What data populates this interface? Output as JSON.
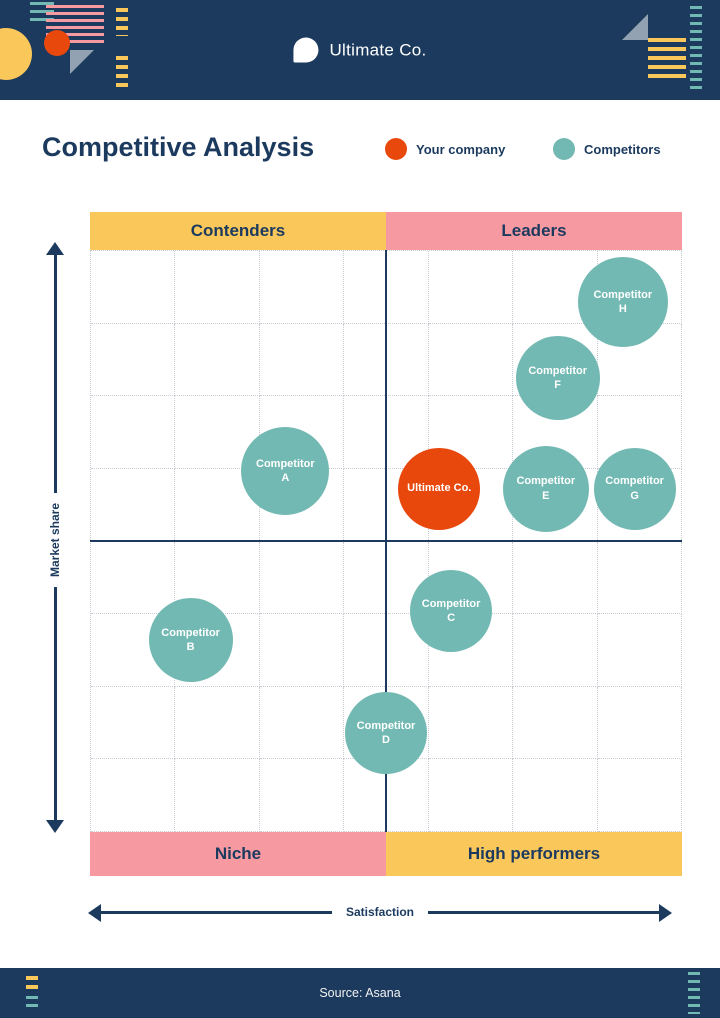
{
  "header": {
    "brand": "Ultimate Co."
  },
  "title": "Competitive Analysis",
  "legend": [
    {
      "label": "Your company",
      "color": "#E8480C"
    },
    {
      "label": "Competitors",
      "color": "#73B9B3"
    }
  ],
  "quadrants": {
    "top_left": "Contenders",
    "top_right": "Leaders",
    "bottom_left": "Niche",
    "bottom_right": "High performers"
  },
  "axes": {
    "x": "Satisfaction",
    "y": "Market share"
  },
  "footer": {
    "source": "Source: Asana"
  },
  "colors": {
    "navy": "#1B3A5E",
    "yellow": "#FAC75B",
    "pink": "#F799A1",
    "teal": "#73B9B3",
    "orange": "#E8480C"
  },
  "chart_data": {
    "type": "scatter",
    "title": "Competitive Analysis",
    "xlabel": "Satisfaction",
    "ylabel": "Market share",
    "xlim": [
      0,
      100
    ],
    "ylim": [
      0,
      100
    ],
    "grid": "dotted",
    "quadrant_labels": [
      "Contenders",
      "Leaders",
      "Niche",
      "High performers"
    ],
    "points": [
      {
        "label": "Competitor H",
        "x": 90,
        "y": 91,
        "r": 45,
        "series": "competitor"
      },
      {
        "label": "Competitor F",
        "x": 79,
        "y": 78,
        "r": 42,
        "series": "competitor"
      },
      {
        "label": "Competitor A",
        "x": 33,
        "y": 62,
        "r": 44,
        "series": "competitor"
      },
      {
        "label": "Ultimate Co.",
        "x": 59,
        "y": 59,
        "r": 41,
        "series": "your_company"
      },
      {
        "label": "Competitor E",
        "x": 77,
        "y": 59,
        "r": 43,
        "series": "competitor"
      },
      {
        "label": "Competitor G",
        "x": 92,
        "y": 59,
        "r": 41,
        "series": "competitor"
      },
      {
        "label": "Competitor C",
        "x": 61,
        "y": 38,
        "r": 41,
        "series": "competitor"
      },
      {
        "label": "Competitor B",
        "x": 17,
        "y": 33,
        "r": 42,
        "series": "competitor"
      },
      {
        "label": "Competitor D",
        "x": 50,
        "y": 17,
        "r": 41,
        "series": "competitor"
      }
    ]
  }
}
